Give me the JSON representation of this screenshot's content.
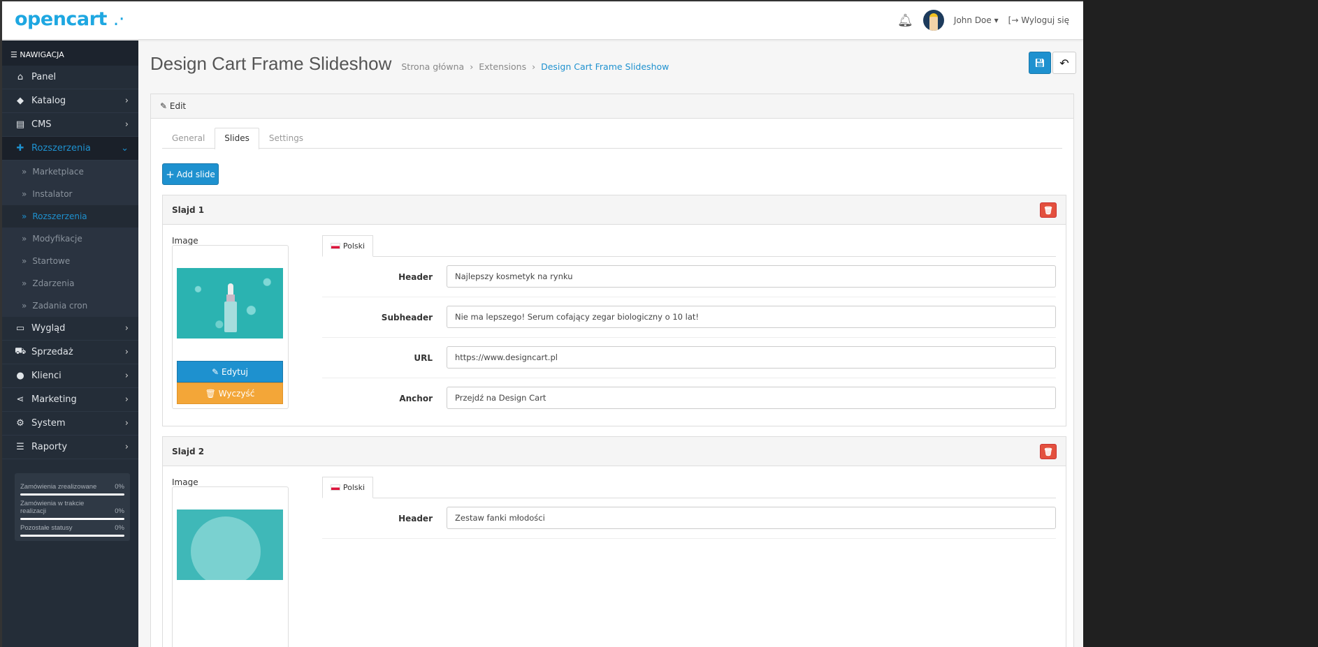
{
  "header": {
    "logo": "opencart",
    "user_name": "John Doe",
    "logout": "Wyloguj się"
  },
  "sidebar": {
    "title": "NAWIGACJA",
    "items": [
      {
        "label": "Panel",
        "icon": "home-icon"
      },
      {
        "label": "Katalog",
        "icon": "tag-icon"
      },
      {
        "label": "CMS",
        "icon": "newspaper-icon"
      },
      {
        "label": "Rozszerzenia",
        "icon": "puzzle-icon"
      },
      {
        "label": "Wygląd",
        "icon": "desktop-icon"
      },
      {
        "label": "Sprzedaż",
        "icon": "cart-icon"
      },
      {
        "label": "Klienci",
        "icon": "user-icon"
      },
      {
        "label": "Marketing",
        "icon": "share-icon"
      },
      {
        "label": "System",
        "icon": "gear-icon"
      },
      {
        "label": "Raporty",
        "icon": "chart-icon"
      }
    ],
    "submenu": [
      "Marketplace",
      "Instalator",
      "Rozszerzenia",
      "Modyfikacje",
      "Startowe",
      "Zdarzenia",
      "Zadania cron"
    ],
    "stats": [
      {
        "label": "Zamówienia zrealizowane",
        "value": "0%"
      },
      {
        "label": "Zamówienia w trakcie realizacji",
        "value": "0%"
      },
      {
        "label": "Pozostałe statusy",
        "value": "0%"
      }
    ]
  },
  "page": {
    "title": "Design Cart Frame Slideshow",
    "breadcrumb": [
      "Strona główna",
      "Extensions",
      "Design Cart Frame Slideshow"
    ],
    "panel_heading": "Edit",
    "tabs": [
      "General",
      "Slides",
      "Settings"
    ],
    "active_tab": "Slides",
    "add_slide": "Add slide"
  },
  "slides": [
    {
      "title": "Slajd 1",
      "image_label": "Image",
      "edit": "Edytuj",
      "clear": "Wyczyść",
      "language": "Polski",
      "fields": [
        {
          "label": "Header",
          "value": "Najlepszy kosmetyk na rynku"
        },
        {
          "label": "Subheader",
          "value": "Nie ma lepszego! Serum cofający zegar biologiczny o 10 lat!"
        },
        {
          "label": "URL",
          "value": "https://www.designcart.pl"
        },
        {
          "label": "Anchor",
          "value": "Przejdź na Design Cart"
        }
      ]
    },
    {
      "title": "Slajd 2",
      "image_label": "Image",
      "language": "Polski",
      "fields": [
        {
          "label": "Header",
          "value": "Zestaw fanki młodości"
        }
      ]
    }
  ],
  "colors": {
    "primary": "#1e91cf",
    "danger": "#e3503e",
    "warning": "#f3a638",
    "sidebar": "#242d38"
  }
}
